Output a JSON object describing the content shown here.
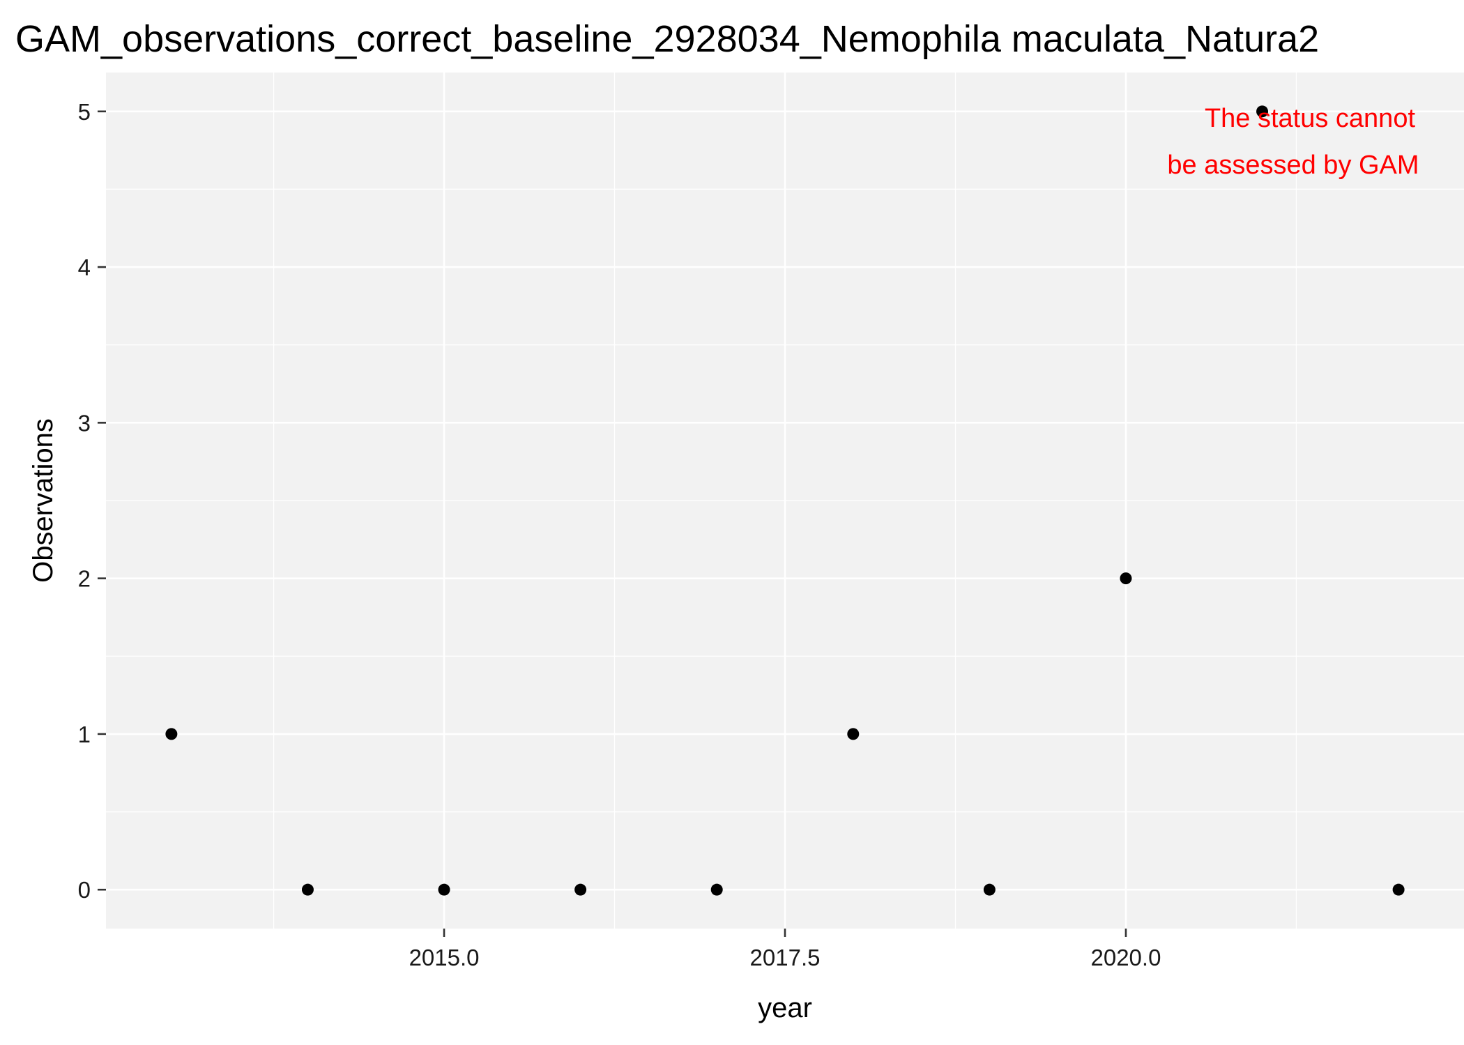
{
  "chart_data": {
    "type": "scatter",
    "title": "GAM_observations_correct_baseline_2928034_Nemophila maculata_Natura2",
    "xlabel": "year",
    "ylabel": "Observations",
    "xlim": [
      2013.0,
      2022.0
    ],
    "ylim": [
      0,
      5
    ],
    "x_ticks": [
      2015.0,
      2017.5,
      2020.0
    ],
    "x_tick_labels": [
      "2015.0",
      "2017.5",
      "2020.0"
    ],
    "y_ticks": [
      0,
      1,
      2,
      3,
      4,
      5
    ],
    "y_tick_labels": [
      "0",
      "1",
      "2",
      "3",
      "4",
      "5"
    ],
    "grid": true,
    "legend": "none",
    "series": [
      {
        "x": [
          2013,
          2014,
          2015,
          2016,
          2017,
          2018,
          2019,
          2020,
          2021,
          2022
        ],
        "y": [
          1,
          0,
          0,
          0,
          0,
          1,
          0,
          2,
          5,
          0
        ]
      }
    ],
    "annotation": {
      "lines": [
        "The status cannot",
        "be assessed by GAM"
      ],
      "color": "#ff0000"
    },
    "colors": {
      "panel": "#f2f2f2",
      "grid": "#ffffff",
      "point": "#000000"
    }
  }
}
